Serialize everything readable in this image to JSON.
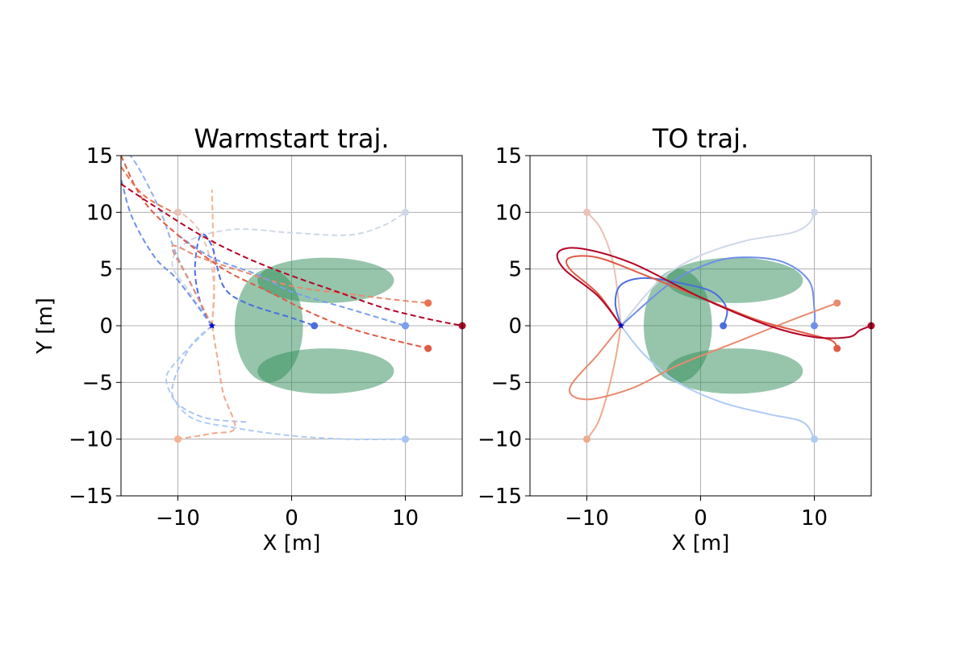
{
  "figure": {
    "background": "#ffffff"
  },
  "chart_data": [
    {
      "type": "line",
      "title": "Warmstart traj.",
      "xlabel": "X [m]",
      "ylabel": "Y [m]",
      "xlim": [
        -15,
        15
      ],
      "ylim": [
        -15,
        15
      ],
      "xticks": [
        -10,
        0,
        10
      ],
      "yticks": [
        -15,
        -10,
        -5,
        0,
        5,
        10,
        15
      ],
      "xtick_labels": [
        "−10",
        "0",
        "10"
      ],
      "ytick_labels": [
        "−15",
        "−10",
        "−5",
        "0",
        "5",
        "10",
        "15"
      ],
      "grid": true,
      "line_style": "dashed",
      "start_marker": {
        "x": -7,
        "y": 0,
        "color": "#0000cc"
      },
      "obstacles": [
        {
          "cx": 3,
          "cy": 4,
          "rx": 6,
          "ry": 2,
          "color": "#2e8b57",
          "alpha": 0.5
        },
        {
          "cx": -2,
          "cy": 0,
          "rx": 3,
          "ry": 5,
          "color": "#2e8b57",
          "alpha": 0.5
        },
        {
          "cx": 3,
          "cy": -4,
          "rx": 6,
          "ry": 2,
          "color": "#2e8b57",
          "alpha": 0.5
        }
      ],
      "series": [
        {
          "color": "#e8c2b5",
          "goal": [
            -10,
            10
          ],
          "points": [
            [
              -7,
              0
            ],
            [
              -6.8,
              3
            ],
            [
              -7.2,
              6
            ],
            [
              -8.2,
              8.5
            ],
            [
              -9.5,
              9.8
            ],
            [
              -10,
              10
            ]
          ]
        },
        {
          "color": "#cfd8e8",
          "goal": [
            10,
            10
          ],
          "points": [
            [
              -7,
              0
            ],
            [
              -9,
              3
            ],
            [
              -10.5,
              5.5
            ],
            [
              -9,
              7.5
            ],
            [
              -5,
              8.5
            ],
            [
              0,
              8.2
            ],
            [
              5,
              8
            ],
            [
              8,
              8.8
            ],
            [
              10,
              10
            ]
          ]
        },
        {
          "color": "#8fb0f0",
          "goal": [
            10,
            0
          ],
          "points": [
            [
              -7,
              0
            ],
            [
              -10,
              6
            ],
            [
              -11.5,
              10
            ],
            [
              -13.5,
              14
            ],
            [
              -15,
              16
            ]
          ]
        },
        {
          "color": "#aecbf5",
          "goal": [
            10,
            -10
          ],
          "points": [
            [
              -7,
              0
            ],
            [
              -10,
              -3
            ],
            [
              -11,
              -5
            ],
            [
              -9,
              -8
            ],
            [
              -5,
              -9
            ],
            [
              0,
              -9.7
            ],
            [
              5,
              -10
            ],
            [
              10,
              -10
            ]
          ]
        },
        {
          "color": "#a8c4f5",
          "goal": [
            10,
            -10
          ],
          "points": [
            [
              -7,
              0
            ],
            [
              -9,
              -2
            ],
            [
              -10.5,
              -6
            ],
            [
              -8,
              -8
            ],
            [
              -4,
              -8.5
            ]
          ]
        },
        {
          "color": "#f0a98a",
          "goal": [
            -10,
            -10
          ],
          "points": [
            [
              -7,
              0
            ],
            [
              -6.5,
              -3
            ],
            [
              -6,
              -6
            ],
            [
              -5,
              -9
            ],
            [
              -7,
              -9.5
            ],
            [
              -10,
              -10
            ]
          ]
        },
        {
          "color": "#f4b494",
          "goal": [
            -10,
            -10
          ],
          "points": [
            [
              -7,
              0
            ],
            [
              -6.8,
              4
            ],
            [
              -6.9,
              8
            ],
            [
              -7,
              12
            ]
          ]
        },
        {
          "color": "#4a6ee0",
          "goal": [
            2,
            0
          ],
          "points": [
            [
              -7,
              0
            ],
            [
              -8,
              2
            ],
            [
              -8.5,
              5
            ],
            [
              -8,
              8
            ],
            [
              -7,
              7
            ],
            [
              -6,
              3.5
            ],
            [
              -4,
              2
            ],
            [
              0,
              0.7
            ],
            [
              2,
              0
            ]
          ]
        },
        {
          "color": "#e88a6e",
          "goal": [
            12,
            2
          ],
          "points": [
            [
              -7,
              0
            ],
            [
              -9,
              4
            ],
            [
              -10.5,
              7
            ],
            [
              -8,
              6
            ],
            [
              -5,
              5
            ],
            [
              0,
              3.5
            ],
            [
              5,
              2.8
            ],
            [
              9,
              2.3
            ],
            [
              12,
              2
            ]
          ]
        },
        {
          "color": "#6f8fe8",
          "goal": [
            10,
            0
          ],
          "points": [
            [
              -7,
              0
            ],
            [
              -10,
              4
            ],
            [
              -12,
              6
            ],
            [
              -14,
              9.5
            ],
            [
              -15,
              13
            ]
          ]
        },
        {
          "color": "#7b9ef0",
          "goal": [
            10,
            0
          ],
          "points": [
            [
              -10,
              8
            ],
            [
              -7,
              6
            ],
            [
              -3,
              4.5
            ],
            [
              0,
              3
            ],
            [
              5,
              1.5
            ],
            [
              10,
              0
            ]
          ]
        },
        {
          "color": "#e05a45",
          "goal": [
            12,
            -2
          ],
          "points": [
            [
              -15,
              15
            ],
            [
              -13,
              11
            ],
            [
              -10,
              8
            ],
            [
              -6,
              5
            ],
            [
              -2,
              3
            ],
            [
              2,
              1
            ],
            [
              6,
              -0.5
            ],
            [
              12,
              -2
            ]
          ]
        },
        {
          "color": "#e8734e",
          "goal": [
            12,
            2
          ],
          "points": [
            [
              -15,
              14
            ],
            [
              -13,
              11.5
            ],
            [
              -10,
              9.8
            ]
          ]
        },
        {
          "color": "#b40426",
          "goal": [
            15,
            0
          ],
          "points": [
            [
              -15,
              12.5
            ],
            [
              -12,
              10.5
            ],
            [
              -8,
              8
            ],
            [
              -4,
              6
            ],
            [
              0,
              4.4
            ],
            [
              4,
              3
            ],
            [
              8,
              1.6
            ],
            [
              12,
              0.6
            ],
            [
              15,
              0
            ]
          ]
        }
      ]
    },
    {
      "type": "line",
      "title": "TO traj.",
      "xlabel": "X [m]",
      "ylabel": "",
      "xlim": [
        -15,
        15
      ],
      "ylim": [
        -15,
        15
      ],
      "xticks": [
        -10,
        0,
        10
      ],
      "yticks": [
        -15,
        -10,
        -5,
        0,
        5,
        10,
        15
      ],
      "xtick_labels": [
        "−10",
        "0",
        "10"
      ],
      "ytick_labels": [
        "−15",
        "−10",
        "−5",
        "0",
        "5",
        "10",
        "15"
      ],
      "grid": true,
      "line_style": "solid",
      "start_marker": {
        "x": -7,
        "y": 0,
        "color": "#0000cc"
      },
      "obstacles": [
        {
          "cx": 3,
          "cy": 4,
          "rx": 6,
          "ry": 2,
          "color": "#2e8b57",
          "alpha": 0.5
        },
        {
          "cx": -2,
          "cy": 0,
          "rx": 3,
          "ry": 5,
          "color": "#2e8b57",
          "alpha": 0.5
        },
        {
          "cx": 3,
          "cy": -4,
          "rx": 6,
          "ry": 2,
          "color": "#2e8b57",
          "alpha": 0.5
        }
      ],
      "series": [
        {
          "color": "#e8c2b5",
          "goal": [
            -10,
            10
          ],
          "points": [
            [
              -7,
              0
            ],
            [
              -7.3,
              3
            ],
            [
              -7.8,
              6
            ],
            [
              -8.8,
              8.6
            ],
            [
              -10,
              10
            ]
          ]
        },
        {
          "color": "#cfd8e8",
          "goal": [
            10,
            10
          ],
          "points": [
            [
              -7,
              0
            ],
            [
              -5,
              2.5
            ],
            [
              -3,
              4.5
            ],
            [
              0,
              6.2
            ],
            [
              4,
              7.5
            ],
            [
              8,
              8.2
            ],
            [
              9.5,
              9
            ],
            [
              10,
              10
            ]
          ]
        },
        {
          "color": "#6f8fe8",
          "goal": [
            10,
            0
          ],
          "points": [
            [
              -7,
              0
            ],
            [
              -3,
              3.5
            ],
            [
              0,
              5.2
            ],
            [
              3,
              6
            ],
            [
              7,
              5.7
            ],
            [
              9.5,
              4
            ],
            [
              10,
              1.5
            ],
            [
              10,
              0
            ]
          ]
        },
        {
          "color": "#aecbf5",
          "goal": [
            10,
            -10
          ],
          "points": [
            [
              -7,
              0
            ],
            [
              -5,
              -2.5
            ],
            [
              -2,
              -5
            ],
            [
              2,
              -6.8
            ],
            [
              6,
              -7.8
            ],
            [
              9,
              -8.5
            ],
            [
              10,
              -10
            ]
          ]
        },
        {
          "color": "#f0a98a",
          "goal": [
            -10,
            -10
          ],
          "points": [
            [
              -7,
              0
            ],
            [
              -7.5,
              -3
            ],
            [
              -8.2,
              -6
            ],
            [
              -9,
              -8.5
            ],
            [
              -10,
              -10
            ]
          ]
        },
        {
          "color": "#4a6ee0",
          "goal": [
            2,
            0
          ],
          "points": [
            [
              -7,
              0
            ],
            [
              -7.5,
              2
            ],
            [
              -7,
              3.6
            ],
            [
              -5,
              4.2
            ],
            [
              -2,
              3.8
            ],
            [
              1,
              3
            ],
            [
              2.3,
              1.5
            ],
            [
              2,
              0
            ]
          ]
        },
        {
          "color": "#e88a6e",
          "goal": [
            12,
            2
          ],
          "points": [
            [
              -7,
              0
            ],
            [
              -9,
              -2.5
            ],
            [
              -11.5,
              -5.5
            ],
            [
              -10,
              -6.5
            ],
            [
              -6,
              -5.5
            ],
            [
              -2,
              -3.5
            ],
            [
              3,
              -1.5
            ],
            [
              8,
              0.5
            ],
            [
              12,
              2
            ]
          ]
        },
        {
          "color": "#e05a45",
          "goal": [
            12,
            -2
          ],
          "points": [
            [
              -7,
              0
            ],
            [
              -9,
              2.8
            ],
            [
              -11.5,
              5
            ],
            [
              -11.5,
              6
            ],
            [
              -9,
              6
            ],
            [
              -5,
              4.5
            ],
            [
              0,
              2.5
            ],
            [
              5,
              0.5
            ],
            [
              9,
              -0.6
            ],
            [
              11.5,
              -1.3
            ],
            [
              12,
              -2
            ]
          ]
        },
        {
          "color": "#b40426",
          "goal": [
            15,
            0
          ],
          "points": [
            [
              -7,
              0
            ],
            [
              -9,
              2.6
            ],
            [
              -12,
              5
            ],
            [
              -12.5,
              6.5
            ],
            [
              -10.5,
              6.8
            ],
            [
              -6,
              5.5
            ],
            [
              0,
              2.5
            ],
            [
              6,
              0
            ],
            [
              10,
              -1
            ],
            [
              13,
              -1
            ],
            [
              14,
              -0.4
            ],
            [
              15,
              0
            ]
          ]
        }
      ]
    }
  ]
}
